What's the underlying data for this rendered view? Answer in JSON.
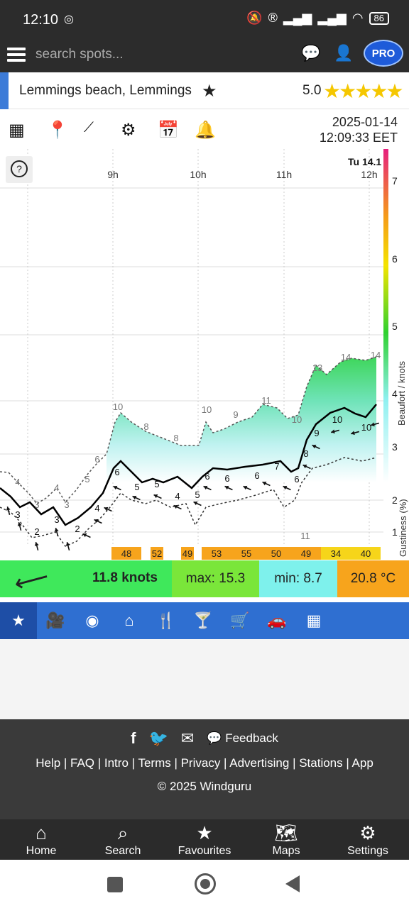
{
  "status": {
    "time": "12:10",
    "battery": "86"
  },
  "search": {
    "placeholder": "search spots..."
  },
  "pro_badge": "PRO",
  "spot": {
    "name": "Lemmings beach, Lemmings",
    "rating": "5.0",
    "stars": "★★★★★"
  },
  "datetime": {
    "date": "2025-01-14",
    "time": "12:09:33 EET"
  },
  "chart_data": {
    "type": "line",
    "day_label": "Tu 14.1",
    "time_ticks": [
      "9h",
      "10h",
      "11h",
      "12h"
    ],
    "y_axis_label": "Beaufort / knots",
    "beaufort_scale": [
      "1",
      "2",
      "3",
      "4",
      "5",
      "6",
      "7"
    ],
    "gustiness_label": "Gustiness (%)",
    "gustiness": [
      "48",
      "52",
      "49",
      "53",
      "55",
      "50",
      "49",
      "34",
      "40"
    ],
    "gust_labels": [
      "4",
      "3",
      "4",
      "3",
      "5",
      "6",
      "10",
      "8",
      "8",
      "10",
      "9",
      "11",
      "10",
      "11",
      "13",
      "14",
      "14"
    ],
    "avg_labels": [
      "3",
      "2",
      "3",
      "2",
      "4",
      "6",
      "5",
      "5",
      "4",
      "5",
      "6",
      "6",
      "6",
      "7",
      "6",
      "8",
      "9",
      "10",
      "10"
    ]
  },
  "wind": {
    "speed": "11.8 knots",
    "max": "max: 15.3",
    "min": "min: 8.7",
    "temp": "20.8 °C"
  },
  "footer": {
    "feedback": "Feedback",
    "links": "Help | FAQ | Intro | Terms | Privacy | Advertising | Stations | App",
    "copyright": "© 2025 Windguru"
  },
  "nav": {
    "home": "Home",
    "search": "Search",
    "favourites": "Favourites",
    "maps": "Maps",
    "settings": "Settings"
  }
}
